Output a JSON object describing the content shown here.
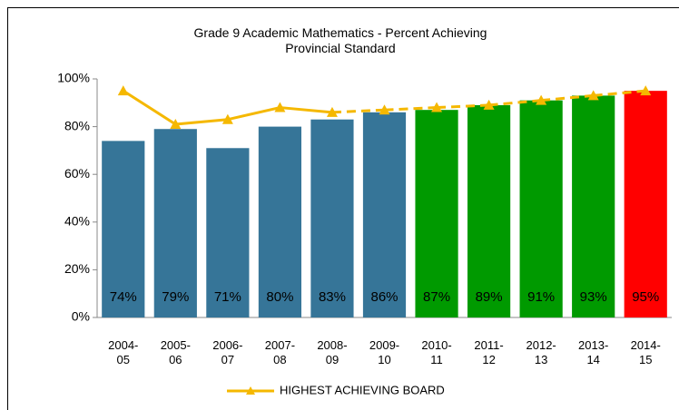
{
  "chart_data": {
    "type": "bar_line",
    "title": "Grade 9 Academic Mathematics - Percent Achieving Provincial Standard",
    "categories": [
      "2004-05",
      "2005-06",
      "2006-07",
      "2007-08",
      "2008-09",
      "2009-10",
      "2010-11",
      "2011-12",
      "2012-13",
      "2013-14",
      "2014-15"
    ],
    "bars": {
      "values": [
        74,
        79,
        71,
        80,
        83,
        86,
        87,
        89,
        91,
        93,
        95
      ],
      "value_labels": [
        "74%",
        "79%",
        "71%",
        "80%",
        "83%",
        "86%",
        "87%",
        "89%",
        "91%",
        "93%",
        "95%"
      ],
      "colors": [
        "#367598",
        "#367598",
        "#367598",
        "#367598",
        "#367598",
        "#367598",
        "#009a00",
        "#009a00",
        "#009a00",
        "#009a00",
        "#ff0000"
      ]
    },
    "series": [
      {
        "name": "HIGHEST ACHIEVING BOARD",
        "color": "#f5b800",
        "values": [
          95,
          81,
          83,
          88,
          86,
          87,
          88,
          89,
          91,
          93,
          95
        ],
        "point_styles": [
          "solid",
          "solid",
          "solid",
          "solid",
          "solid",
          "dashed",
          "dashed",
          "dashed",
          "dashed",
          "dashed",
          "dashed"
        ]
      }
    ],
    "ylim": [
      0,
      100
    ],
    "yticks": [
      {
        "value": 0,
        "label": "0%"
      },
      {
        "value": 20,
        "label": "20%"
      },
      {
        "value": 40,
        "label": "40%"
      },
      {
        "value": 60,
        "label": "60%"
      },
      {
        "value": 80,
        "label": "80%"
      },
      {
        "value": 100,
        "label": "100%"
      }
    ],
    "legend": "bottom"
  }
}
